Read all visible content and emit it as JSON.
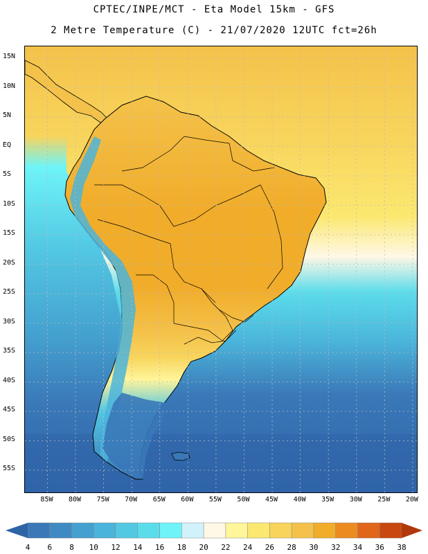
{
  "title_line1": "CPTEC/INPE/MCT -  Eta Model 15km - GFS",
  "title_line2": "2 Metre Temperature (C) - 21/07/2020 12UTC fct=26h",
  "lat_ticks": [
    {
      "value": 15,
      "label": "15N"
    },
    {
      "value": 10,
      "label": "10N"
    },
    {
      "value": 5,
      "label": "5N"
    },
    {
      "value": 0,
      "label": "EQ"
    },
    {
      "value": -5,
      "label": "5S"
    },
    {
      "value": -10,
      "label": "10S"
    },
    {
      "value": -15,
      "label": "15S"
    },
    {
      "value": -20,
      "label": "20S"
    },
    {
      "value": -25,
      "label": "25S"
    },
    {
      "value": -30,
      "label": "30S"
    },
    {
      "value": -35,
      "label": "35S"
    },
    {
      "value": -40,
      "label": "40S"
    },
    {
      "value": -45,
      "label": "45S"
    },
    {
      "value": -50,
      "label": "50S"
    },
    {
      "value": -55,
      "label": "55S"
    }
  ],
  "lon_ticks": [
    {
      "value": -85,
      "label": "85W"
    },
    {
      "value": -80,
      "label": "80W"
    },
    {
      "value": -75,
      "label": "75W"
    },
    {
      "value": -70,
      "label": "70W"
    },
    {
      "value": -65,
      "label": "65W"
    },
    {
      "value": -60,
      "label": "60W"
    },
    {
      "value": -55,
      "label": "55W"
    },
    {
      "value": -50,
      "label": "50W"
    },
    {
      "value": -45,
      "label": "45W"
    },
    {
      "value": -40,
      "label": "40W"
    },
    {
      "value": -35,
      "label": "35W"
    },
    {
      "value": -30,
      "label": "30W"
    },
    {
      "value": -25,
      "label": "25W"
    },
    {
      "value": -20,
      "label": "20W"
    }
  ],
  "legend": {
    "labels": [
      "4",
      "6",
      "8",
      "10",
      "12",
      "14",
      "16",
      "18",
      "20",
      "22",
      "24",
      "26",
      "28",
      "30",
      "32",
      "34",
      "36",
      "38"
    ],
    "colors": [
      "#3a78b8",
      "#3f8ac3",
      "#44a0cf",
      "#4bb4da",
      "#53c8e3",
      "#5bdceb",
      "#6ef4f8",
      "#d2f2fb",
      "#fff8e6",
      "#fff59a",
      "#fbe870",
      "#f8d45c",
      "#f4c24a",
      "#f1ac2a",
      "#ec8b20",
      "#e0661a",
      "#c9480f"
    ],
    "low_arrow_color": "#2e63a6",
    "high_arrow_color": "#b0380a"
  },
  "colors": {
    "ocean_cold": "#2f64a8",
    "ocean_cool": "#3a78b8",
    "ocean_mid": "#4bb4da",
    "ocean_warm": "#5bdceb",
    "ocean_tropical": "#f8d45c",
    "ocean_subtropic": "#fbe870",
    "land_hot": "#f1ac2a",
    "land_warm": "#f4c24a",
    "land_cool": "#4bb4da",
    "grid_line": "#bbbbbb",
    "border_line": "#000000"
  }
}
